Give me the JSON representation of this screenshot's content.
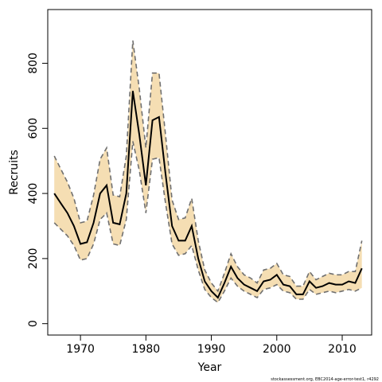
{
  "chart_data": {
    "type": "line",
    "xlabel": "Year",
    "ylabel": "Recruits",
    "xlim": [
      1965,
      2014.5
    ],
    "ylim": [
      -35,
      965
    ],
    "x_ticks": [
      1970,
      1980,
      1990,
      2000,
      2010
    ],
    "y_ticks": [
      0,
      200,
      400,
      600,
      800
    ],
    "caption": "stockassessment.org, EBC2014-age-error-test1, r4292",
    "colors": {
      "band": "#F5DEB3",
      "bounds": "#707070",
      "estimate": "#000000"
    },
    "x": [
      1966,
      1967,
      1968,
      1969,
      1970,
      1971,
      1972,
      1973,
      1974,
      1975,
      1976,
      1977,
      1978,
      1979,
      1980,
      1981,
      1982,
      1983,
      1984,
      1985,
      1986,
      1987,
      1988,
      1989,
      1990,
      1991,
      1992,
      1993,
      1994,
      1995,
      1996,
      1997,
      1998,
      1999,
      2000,
      2001,
      2002,
      2003,
      2004,
      2005,
      2006,
      2007,
      2008,
      2009,
      2010,
      2011,
      2012,
      2013
    ],
    "series": [
      {
        "values": [
          400,
          370,
          340,
          300,
          245,
          250,
          310,
          400,
          425,
          310,
          305,
          400,
          715,
          580,
          425,
          625,
          635,
          460,
          300,
          255,
          255,
          300,
          200,
          130,
          100,
          80,
          125,
          175,
          140,
          120,
          110,
          100,
          130,
          135,
          150,
          120,
          115,
          90,
          90,
          130,
          110,
          115,
          125,
          120,
          120,
          130,
          125,
          170
        ]
      },
      {
        "values": [
          310,
          290,
          270,
          240,
          195,
          200,
          245,
          320,
          340,
          245,
          240,
          320,
          560,
          470,
          340,
          505,
          510,
          370,
          245,
          210,
          215,
          240,
          165,
          105,
          80,
          65,
          100,
          140,
          115,
          100,
          90,
          80,
          105,
          110,
          120,
          100,
          95,
          75,
          75,
          105,
          90,
          95,
          100,
          95,
          100,
          105,
          100,
          110
        ]
      },
      {
        "values": [
          515,
          475,
          435,
          385,
          310,
          315,
          395,
          505,
          540,
          395,
          390,
          515,
          870,
          720,
          540,
          770,
          770,
          580,
          380,
          320,
          325,
          385,
          255,
          165,
          125,
          100,
          155,
          215,
          175,
          150,
          140,
          125,
          165,
          170,
          185,
          150,
          145,
          115,
          115,
          160,
          135,
          145,
          155,
          150,
          150,
          160,
          160,
          255
        ]
      }
    ]
  }
}
